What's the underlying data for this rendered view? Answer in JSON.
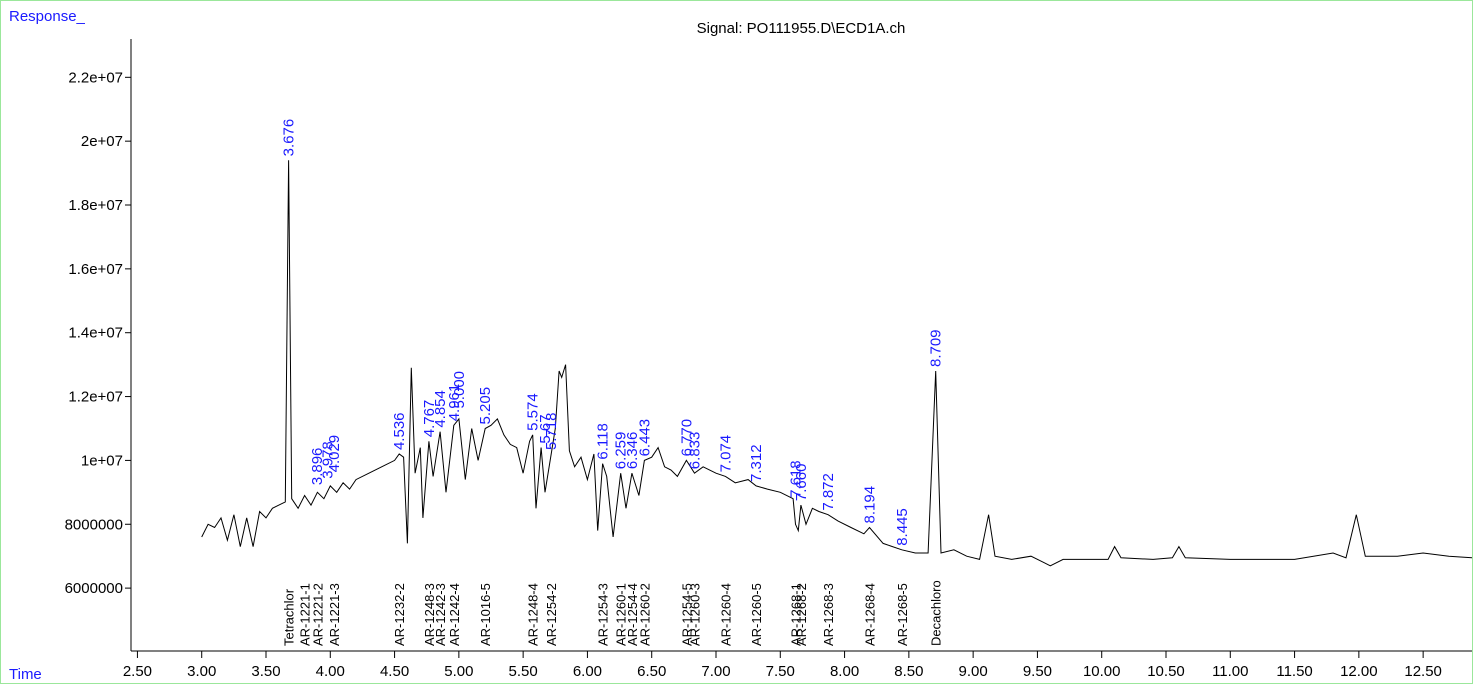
{
  "chart_data": {
    "type": "line",
    "title": "Signal: PO111955.D\\ECD1A.ch",
    "y_label": "Response_",
    "x_label": "Time",
    "xlim": [
      2.45,
      12.88
    ],
    "ylim": [
      4030000,
      23200000
    ],
    "xticks": [
      {
        "value": 2.5,
        "label": "2.50"
      },
      {
        "value": 3.0,
        "label": "3.00"
      },
      {
        "value": 3.5,
        "label": "3.50"
      },
      {
        "value": 4.0,
        "label": "4.00"
      },
      {
        "value": 4.5,
        "label": "4.50"
      },
      {
        "value": 5.0,
        "label": "5.00"
      },
      {
        "value": 5.5,
        "label": "5.50"
      },
      {
        "value": 6.0,
        "label": "6.00"
      },
      {
        "value": 6.5,
        "label": "6.50"
      },
      {
        "value": 7.0,
        "label": "7.00"
      },
      {
        "value": 7.5,
        "label": "7.50"
      },
      {
        "value": 8.0,
        "label": "8.00"
      },
      {
        "value": 8.5,
        "label": "8.50"
      },
      {
        "value": 9.0,
        "label": "9.00"
      },
      {
        "value": 9.5,
        "label": "9.50"
      },
      {
        "value": 10.0,
        "label": "10.00"
      },
      {
        "value": 10.5,
        "label": "10.50"
      },
      {
        "value": 11.0,
        "label": "11.00"
      },
      {
        "value": 11.5,
        "label": "11.50"
      },
      {
        "value": 12.0,
        "label": "12.00"
      },
      {
        "value": 12.5,
        "label": "12.50"
      }
    ],
    "yticks": [
      6000000,
      8000000,
      {
        "value": 10000000,
        "label": "1e+07"
      },
      {
        "value": 12000000,
        "label": "1.2e+07"
      },
      {
        "value": 14000000,
        "label": "1.4e+07"
      },
      {
        "value": 16000000,
        "label": "1.6e+07"
      },
      {
        "value": 18000000,
        "label": "1.8e+07"
      },
      {
        "value": 20000000,
        "label": "2e+07"
      },
      {
        "value": 22000000,
        "label": "2.2e+07"
      }
    ],
    "series": [
      {
        "name": "ECD1A",
        "color": "#000000",
        "x": [
          3.0,
          3.05,
          3.1,
          3.15,
          3.2,
          3.25,
          3.3,
          3.35,
          3.4,
          3.45,
          3.5,
          3.55,
          3.6,
          3.65,
          3.676,
          3.7,
          3.75,
          3.8,
          3.85,
          3.9,
          3.95,
          4.0,
          4.05,
          4.1,
          4.15,
          4.2,
          4.3,
          4.4,
          4.5,
          4.536,
          4.57,
          4.6,
          4.63,
          4.66,
          4.7,
          4.72,
          4.767,
          4.8,
          4.854,
          4.9,
          4.961,
          5.0,
          5.05,
          5.1,
          5.15,
          5.205,
          5.25,
          5.3,
          5.35,
          5.4,
          5.45,
          5.5,
          5.55,
          5.574,
          5.6,
          5.64,
          5.67,
          5.718,
          5.75,
          5.78,
          5.8,
          5.83,
          5.86,
          5.9,
          5.95,
          6.0,
          6.05,
          6.08,
          6.118,
          6.15,
          6.2,
          6.259,
          6.3,
          6.346,
          6.4,
          6.443,
          6.5,
          6.55,
          6.6,
          6.65,
          6.7,
          6.77,
          6.833,
          6.9,
          7.0,
          7.074,
          7.15,
          7.25,
          7.312,
          7.4,
          7.5,
          7.6,
          7.618,
          7.64,
          7.66,
          7.7,
          7.75,
          7.8,
          7.872,
          7.95,
          8.05,
          8.15,
          8.194,
          8.3,
          8.445,
          8.55,
          8.65,
          8.709,
          8.75,
          8.85,
          8.95,
          9.05,
          9.12,
          9.17,
          9.3,
          9.45,
          9.55,
          9.6,
          9.7,
          9.9,
          10.05,
          10.1,
          10.15,
          10.4,
          10.55,
          10.6,
          10.65,
          11.0,
          11.5,
          11.8,
          11.9,
          11.98,
          12.05,
          12.3,
          12.5,
          12.7,
          12.88
        ],
        "values": [
          7600000,
          8000000,
          7900000,
          8200000,
          7500000,
          8300000,
          7300000,
          8200000,
          7300000,
          8400000,
          8200000,
          8500000,
          8600000,
          8700000,
          19400000,
          8800000,
          8500000,
          8900000,
          8600000,
          9000000,
          8800000,
          9200000,
          9000000,
          9300000,
          9100000,
          9400000,
          9600000,
          9800000,
          10000000,
          10200000,
          10100000,
          7400000,
          12900000,
          9600000,
          10400000,
          8200000,
          10600000,
          9500000,
          10900000,
          9000000,
          11100000,
          11300000,
          9400000,
          11000000,
          10000000,
          11000000,
          11100000,
          11300000,
          10800000,
          10500000,
          10400000,
          9600000,
          10600000,
          10800000,
          8500000,
          10400000,
          9000000,
          10200000,
          11000000,
          12800000,
          12600000,
          13000000,
          10300000,
          9800000,
          10100000,
          9400000,
          10200000,
          7800000,
          9900000,
          9500000,
          7600000,
          9600000,
          8500000,
          9600000,
          8900000,
          10000000,
          10100000,
          10400000,
          9800000,
          9700000,
          9500000,
          10000000,
          9600000,
          9800000,
          9600000,
          9500000,
          9300000,
          9400000,
          9200000,
          9100000,
          9000000,
          8800000,
          8000000,
          7800000,
          8600000,
          8000000,
          8500000,
          8400000,
          8300000,
          8100000,
          7900000,
          7700000,
          7900000,
          7400000,
          7200000,
          7100000,
          7100000,
          12800000,
          7100000,
          7200000,
          7000000,
          6900000,
          8300000,
          7000000,
          6900000,
          7000000,
          6800000,
          6700000,
          6900000,
          6900000,
          6900000,
          7300000,
          6950000,
          6900000,
          6950000,
          7300000,
          6950000,
          6900000,
          6900000,
          7100000,
          6950000,
          8300000,
          7000000,
          7000000,
          7100000,
          7000000,
          6950000
        ]
      }
    ],
    "peaks": {
      "x": [
        3.676,
        3.896,
        3.978,
        4.029,
        4.536,
        4.767,
        4.854,
        4.961,
        5.0,
        5.205,
        5.574,
        5.67,
        5.718,
        6.118,
        6.259,
        6.346,
        6.443,
        6.77,
        6.833,
        7.074,
        7.312,
        7.618,
        7.66,
        7.872,
        8.194,
        8.445,
        8.709
      ],
      "values": [
        19400000,
        9100000,
        9300000,
        9500000,
        10200000,
        10600000,
        10900000,
        11100000,
        11500000,
        11000000,
        10800000,
        10400000,
        10200000,
        9900000,
        9600000,
        9600000,
        10000000,
        10000000,
        9600000,
        9500000,
        9200000,
        8700000,
        8600000,
        8300000,
        7900000,
        7200000,
        12800000
      ],
      "value_labels": [
        "3.676",
        "3.896",
        "3.978",
        "4.029",
        "4.536",
        "4.767",
        "4.854",
        "4.961",
        "5.000",
        "5.205",
        "5.574",
        "5.67",
        "5.718",
        "6.118",
        "6.259",
        "6.346",
        "6.443",
        "6.770",
        "6.833",
        "7.074",
        "7.312",
        "7.618",
        "7.660",
        "7.872",
        "8.194",
        "8.445",
        "8.709"
      ]
    },
    "compounds": {
      "x": [
        3.676,
        3.8,
        3.9,
        4.03,
        4.536,
        4.767,
        4.854,
        4.961,
        5.205,
        5.574,
        5.718,
        6.118,
        6.259,
        6.346,
        6.443,
        6.77,
        6.833,
        7.074,
        7.312,
        7.618,
        7.66,
        7.872,
        8.194,
        8.445,
        8.709
      ],
      "labels": [
        "Tetrachlor",
        "AR-1221-1",
        "AR-1221-2",
        "AR-1221-3",
        "AR-1232-2",
        "AR-1248-3",
        "AR-1242-3",
        "AR-1242-4",
        "AR-1016-5",
        "AR-1248-4",
        "AR-1254-2",
        "AR-1254-3",
        "AR-1260-1",
        "AR-1254-4",
        "AR-1260-2",
        "AR-1254-5",
        "AR-1260-3",
        "AR-1260-4",
        "AR-1260-5",
        "AR-1268-1",
        "AR-1268-2",
        "AR-1268-3",
        "AR-1268-4",
        "AR-1268-5",
        "Decachloro"
      ]
    }
  }
}
